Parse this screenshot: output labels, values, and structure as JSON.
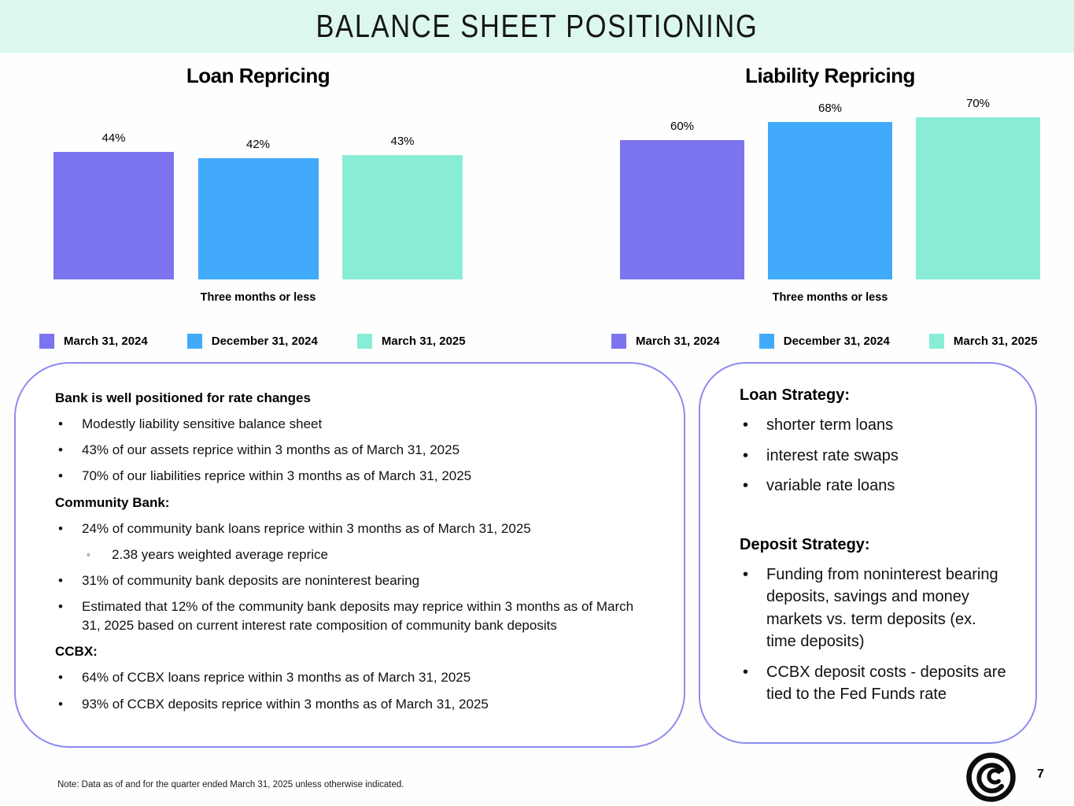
{
  "header": {
    "title": "BALANCE SHEET POSITIONING"
  },
  "colors": {
    "purple": "#7b74ee",
    "blue": "#41aafa",
    "mint": "#89edd6",
    "header_bg": "#dbf7f0",
    "box_border": "#8b8bf0"
  },
  "chart_data": [
    {
      "type": "bar",
      "title": "Loan Repricing",
      "categories": [
        "Three months or less"
      ],
      "series": [
        {
          "name": "March 31, 2024",
          "color_key": "purple",
          "values": [
            44
          ]
        },
        {
          "name": "December 31, 2024",
          "color_key": "blue",
          "values": [
            42
          ]
        },
        {
          "name": "March 31, 2025",
          "color_key": "mint",
          "values": [
            43
          ]
        }
      ],
      "value_labels": [
        "44%",
        "42%",
        "43%"
      ],
      "xlabel": "Three months or less",
      "ylabel": "",
      "ylim": [
        0,
        56
      ],
      "grid": false,
      "legend_position": "bottom"
    },
    {
      "type": "bar",
      "title": "Liability Repricing",
      "categories": [
        "Three months or less"
      ],
      "series": [
        {
          "name": "March 31, 2024",
          "color_key": "purple",
          "values": [
            60
          ]
        },
        {
          "name": "December 31, 2024",
          "color_key": "blue",
          "values": [
            68
          ]
        },
        {
          "name": "March 31, 2025",
          "color_key": "mint",
          "values": [
            70
          ]
        }
      ],
      "value_labels": [
        "60%",
        "68%",
        "70%"
      ],
      "xlabel": "Three months or less",
      "ylabel": "",
      "ylim": [
        0,
        70
      ],
      "grid": false,
      "legend_position": "bottom"
    }
  ],
  "left_box": {
    "lines": [
      {
        "style": "heading",
        "text": "Bank is well positioned for rate changes"
      },
      {
        "style": "bullet",
        "text": "Modestly liability sensitive balance sheet"
      },
      {
        "style": "bullet",
        "text": "43% of our assets reprice within 3 months as of March 31, 2025"
      },
      {
        "style": "bullet",
        "text": "70% of our liabilities reprice within 3 months as of March 31, 2025"
      },
      {
        "style": "heading",
        "text": "Community Bank:"
      },
      {
        "style": "bullet",
        "text": "24% of community bank loans reprice within 3 months as of March 31, 2025"
      },
      {
        "style": "sub",
        "text": "2.38 years weighted average reprice"
      },
      {
        "style": "bullet",
        "text": "31% of community bank deposits are noninterest bearing"
      },
      {
        "style": "bullet",
        "text": "Estimated that 12% of the community bank deposits may reprice within 3 months as of March 31, 2025 based on current interest rate composition of community bank deposits"
      },
      {
        "style": "heading",
        "text": "CCBX:"
      },
      {
        "style": "bullet",
        "text": "64% of CCBX loans reprice within 3 months as of March 31, 2025"
      },
      {
        "style": "bullet",
        "text": "93% of CCBX deposits reprice within 3 months as of March 31, 2025"
      }
    ]
  },
  "right_box": {
    "lines": [
      {
        "style": "heading",
        "text": "Loan Strategy:"
      },
      {
        "style": "bullet",
        "text": "shorter term loans"
      },
      {
        "style": "bullet",
        "text": "interest rate swaps"
      },
      {
        "style": "bullet",
        "text": "variable rate loans"
      },
      {
        "style": "gap",
        "text": ""
      },
      {
        "style": "heading",
        "text": "Deposit Strategy:"
      },
      {
        "style": "bullet",
        "text": "Funding from noninterest bearing deposits, savings and money markets  vs. term deposits (ex. time deposits)"
      },
      {
        "style": "bullet",
        "text": "CCBX deposit costs - deposits are tied to the Fed Funds rate"
      }
    ]
  },
  "footer": {
    "note": "Note: Data as of and for the quarter ended March 31, 2025 unless otherwise indicated.",
    "page_number": "7",
    "logo": "coastal-spiral-logo"
  }
}
